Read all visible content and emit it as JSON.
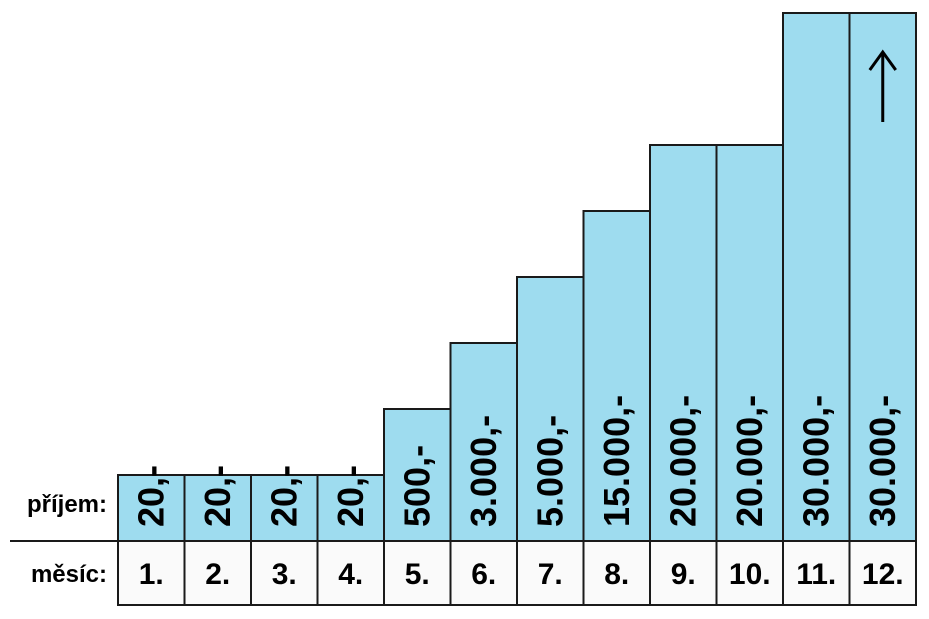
{
  "chart_data": {
    "type": "bar",
    "row_labels": {
      "income": "příjem:",
      "month": "měsíc:"
    },
    "categories": [
      "1.",
      "2.",
      "3.",
      "4.",
      "5.",
      "6.",
      "7.",
      "8.",
      "9.",
      "10.",
      "11.",
      "12."
    ],
    "value_labels": [
      "20,-",
      "20,-",
      "20,-",
      "20,-",
      "500,-",
      "3.000,-",
      "5.000,-",
      "15.000,-",
      "20.000,-",
      "20.000,-",
      "30.000,-",
      "30.000,-"
    ],
    "values": [
      20,
      20,
      20,
      20,
      500,
      3000,
      5000,
      15000,
      20000,
      20000,
      30000,
      30000
    ],
    "step_level": [
      1,
      1,
      1,
      1,
      2,
      3,
      4,
      5,
      6,
      6,
      8,
      8
    ],
    "last_bar_arrow": "arrow-up-icon",
    "bar_color": "#9edcef",
    "axis": "none",
    "grid": false,
    "legend": "none"
  }
}
